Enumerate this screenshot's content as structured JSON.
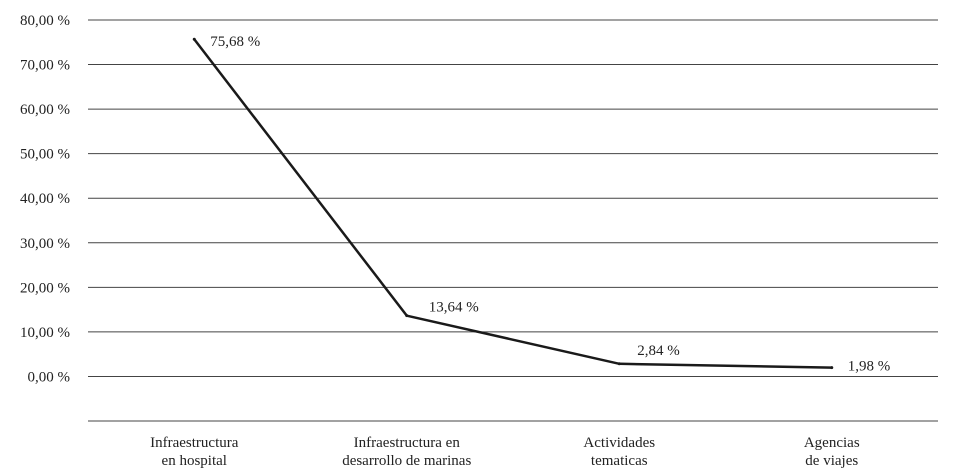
{
  "chart_data": {
    "type": "line",
    "title": "",
    "xlabel": "",
    "ylabel": "",
    "categories": [
      [
        "Infraestructura",
        "en hospital"
      ],
      [
        "Infraestructura en",
        "desarrollo de marinas"
      ],
      [
        "Actividades",
        "tematicas"
      ],
      [
        "Agencias",
        "de viajes"
      ]
    ],
    "series": [
      {
        "values": [
          75.68,
          13.64,
          2.84,
          1.98
        ],
        "data_labels": [
          "75,68 %",
          "13,64 %",
          "2,84 %",
          "1,98 %"
        ]
      }
    ],
    "y_ticks": [
      0,
      10,
      20,
      30,
      40,
      50,
      60,
      70,
      80
    ],
    "y_tick_labels": [
      "0,00 %",
      "10,00 %",
      "20,00 %",
      "30,00 %",
      "40,00 %",
      "50,00 %",
      "60,00 %",
      "70,00 %",
      "80,00 %"
    ],
    "ylim": [
      -10,
      80
    ],
    "grid": true,
    "legend": "none",
    "colors": {
      "line": "#1a1a1a",
      "grid": "#444444",
      "text": "#222222"
    }
  }
}
